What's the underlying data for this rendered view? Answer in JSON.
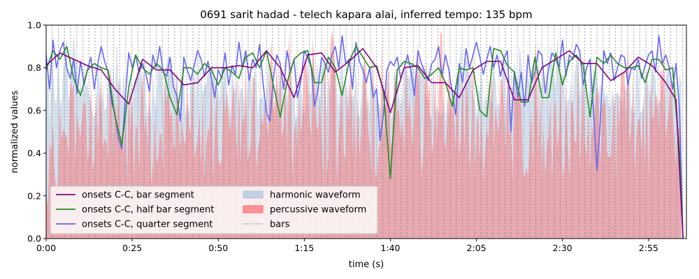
{
  "chart_data": {
    "type": "line",
    "title": "0691 sarit hadad - telech kapara alai, inferred tempo: 135 bpm",
    "xlabel": "time (s)",
    "ylabel": "normalized values",
    "xlim": [
      0,
      186
    ],
    "ylim": [
      0,
      1
    ],
    "x_ticks": [
      {
        "value": 0,
        "label": "0:00"
      },
      {
        "value": 25,
        "label": "0:25"
      },
      {
        "value": 50,
        "label": "0:50"
      },
      {
        "value": 75,
        "label": "1:15"
      },
      {
        "value": 100,
        "label": "1:40"
      },
      {
        "value": 125,
        "label": "2:05"
      },
      {
        "value": 150,
        "label": "2:30"
      },
      {
        "value": 175,
        "label": "2:55"
      }
    ],
    "y_ticks": [
      {
        "value": 0,
        "label": "0.0"
      },
      {
        "value": 0.2,
        "label": "0.2"
      },
      {
        "value": 0.4,
        "label": "0.4"
      },
      {
        "value": 0.6,
        "label": "0.6"
      },
      {
        "value": 0.8,
        "label": "0.8"
      },
      {
        "value": 1.0,
        "label": "1.0"
      }
    ],
    "legend_position": "lower-left",
    "bar_interval": 1.778,
    "series": [
      {
        "name": "onsets C-C, bar segment",
        "color": "#800080",
        "x": [
          0,
          4,
          8,
          12,
          16,
          20,
          24,
          28,
          32,
          36,
          40,
          44,
          48,
          52,
          56,
          60,
          64,
          68,
          72,
          76,
          80,
          84,
          88,
          92,
          96,
          100,
          104,
          108,
          112,
          116,
          120,
          124,
          128,
          132,
          136,
          140,
          144,
          148,
          152,
          156,
          160,
          164,
          168,
          172,
          176,
          180,
          183,
          185
        ],
        "values": [
          0.81,
          0.87,
          0.84,
          0.81,
          0.79,
          0.7,
          0.63,
          0.84,
          0.79,
          0.79,
          0.72,
          0.73,
          0.8,
          0.8,
          0.81,
          0.8,
          0.88,
          0.8,
          0.66,
          0.86,
          0.87,
          0.78,
          0.83,
          0.89,
          0.8,
          0.59,
          0.8,
          0.81,
          0.73,
          0.73,
          0.66,
          0.79,
          0.83,
          0.83,
          0.65,
          0.65,
          0.8,
          0.84,
          0.88,
          0.82,
          0.82,
          0.74,
          0.78,
          0.85,
          0.81,
          0.73,
          0.65,
          0.0
        ]
      },
      {
        "name": "onsets C-C, half bar segment",
        "color": "#228b22",
        "x": [
          0,
          2,
          4,
          6,
          8,
          10,
          12,
          14,
          16,
          18,
          20,
          22,
          24,
          26,
          28,
          30,
          32,
          34,
          36,
          38,
          40,
          42,
          44,
          46,
          48,
          50,
          52,
          54,
          56,
          58,
          60,
          62,
          64,
          66,
          68,
          70,
          72,
          74,
          76,
          78,
          80,
          82,
          84,
          86,
          88,
          90,
          92,
          94,
          96,
          98,
          100,
          102,
          104,
          106,
          108,
          110,
          112,
          114,
          116,
          118,
          120,
          122,
          124,
          126,
          128,
          130,
          132,
          134,
          136,
          138,
          140,
          142,
          144,
          146,
          148,
          150,
          152,
          154,
          156,
          158,
          160,
          162,
          164,
          166,
          168,
          170,
          172,
          174,
          176,
          178,
          180,
          182,
          184,
          185
        ],
        "values": [
          0.79,
          0.88,
          0.84,
          0.9,
          0.75,
          0.67,
          0.79,
          0.82,
          0.8,
          0.79,
          0.57,
          0.44,
          0.71,
          0.86,
          0.8,
          0.77,
          0.82,
          0.79,
          0.66,
          0.58,
          0.8,
          0.8,
          0.77,
          0.82,
          0.79,
          0.72,
          0.8,
          0.78,
          0.75,
          0.85,
          0.87,
          0.8,
          0.88,
          0.72,
          0.57,
          0.73,
          0.84,
          0.87,
          0.88,
          0.73,
          0.73,
          0.85,
          0.8,
          0.67,
          0.83,
          0.9,
          0.85,
          0.8,
          0.81,
          0.69,
          0.28,
          0.79,
          0.83,
          0.82,
          0.8,
          0.75,
          0.77,
          0.8,
          0.73,
          0.62,
          0.8,
          0.79,
          0.8,
          0.6,
          0.57,
          0.89,
          0.88,
          0.81,
          0.78,
          0.64,
          0.64,
          0.85,
          0.66,
          0.66,
          0.87,
          0.72,
          0.83,
          0.86,
          0.81,
          0.57,
          0.85,
          0.82,
          0.86,
          0.82,
          0.8,
          0.8,
          0.81,
          0.73,
          0.84,
          0.84,
          0.79,
          0.8,
          0.4,
          0.0
        ]
      },
      {
        "name": "onsets C-C, quarter segment",
        "color": "#6666ee",
        "x": [
          0,
          1,
          2,
          3,
          4,
          5,
          6,
          7,
          8,
          9,
          10,
          11,
          12,
          13,
          14,
          15,
          16,
          17,
          18,
          19,
          20,
          21,
          22,
          23,
          24,
          25,
          26,
          27,
          28,
          29,
          30,
          31,
          32,
          33,
          34,
          35,
          36,
          37,
          38,
          39,
          40,
          41,
          42,
          43,
          44,
          45,
          46,
          47,
          48,
          49,
          50,
          51,
          52,
          53,
          54,
          55,
          56,
          57,
          58,
          59,
          60,
          61,
          62,
          63,
          64,
          65,
          66,
          67,
          68,
          69,
          70,
          71,
          72,
          73,
          74,
          75,
          76,
          77,
          78,
          79,
          80,
          81,
          82,
          83,
          84,
          85,
          86,
          87,
          88,
          89,
          90,
          91,
          92,
          93,
          94,
          95,
          96,
          97,
          98,
          99,
          100,
          101,
          102,
          103,
          104,
          105,
          106,
          107,
          108,
          109,
          110,
          111,
          112,
          113,
          114,
          115,
          116,
          117,
          118,
          119,
          120,
          121,
          122,
          123,
          124,
          125,
          126,
          127,
          128,
          129,
          130,
          131,
          132,
          133,
          134,
          135,
          136,
          137,
          138,
          139,
          140,
          141,
          142,
          143,
          144,
          145,
          146,
          147,
          148,
          149,
          150,
          151,
          152,
          153,
          154,
          155,
          156,
          157,
          158,
          159,
          160,
          161,
          162,
          163,
          164,
          165,
          166,
          167,
          168,
          169,
          170,
          171,
          172,
          173,
          174,
          175,
          176,
          177,
          178,
          179,
          180,
          181,
          182,
          183,
          184,
          185
        ],
        "values": [
          0.86,
          0.7,
          0.93,
          0.8,
          0.88,
          0.92,
          0.8,
          0.75,
          0.84,
          0.68,
          0.83,
          0.72,
          0.79,
          0.85,
          0.7,
          0.82,
          0.9,
          0.83,
          0.78,
          0.64,
          0.58,
          0.47,
          0.42,
          0.66,
          0.87,
          0.8,
          0.86,
          0.78,
          0.82,
          0.77,
          0.69,
          0.86,
          0.8,
          0.9,
          0.78,
          0.76,
          0.85,
          0.71,
          0.67,
          0.55,
          0.85,
          0.79,
          0.74,
          0.81,
          0.88,
          0.84,
          0.76,
          0.83,
          0.75,
          0.66,
          0.79,
          0.75,
          0.87,
          0.72,
          0.81,
          0.77,
          0.92,
          0.8,
          0.88,
          0.74,
          0.84,
          0.8,
          0.91,
          0.73,
          0.59,
          0.55,
          0.75,
          0.86,
          0.82,
          0.7,
          0.88,
          0.78,
          0.84,
          0.66,
          0.74,
          0.88,
          0.85,
          0.8,
          0.62,
          0.7,
          0.85,
          0.82,
          0.78,
          0.86,
          0.9,
          0.8,
          0.95,
          0.82,
          0.84,
          0.7,
          0.92,
          0.83,
          0.79,
          0.73,
          0.8,
          0.66,
          0.7,
          0.46,
          0.58,
          0.79,
          0.83,
          0.81,
          0.85,
          0.75,
          0.8,
          0.86,
          0.78,
          0.67,
          0.88,
          0.82,
          0.78,
          0.74,
          0.82,
          0.84,
          0.9,
          0.76,
          0.86,
          0.79,
          0.68,
          0.58,
          0.82,
          0.73,
          0.89,
          0.8,
          0.86,
          0.92,
          0.85,
          0.77,
          0.84,
          0.9,
          0.8,
          0.86,
          0.76,
          0.84,
          0.88,
          0.5,
          0.78,
          0.66,
          0.78,
          0.62,
          0.86,
          0.73,
          0.78,
          0.88,
          0.86,
          0.68,
          0.8,
          0.87,
          0.84,
          0.8,
          0.93,
          0.76,
          0.86,
          0.84,
          0.91,
          0.88,
          0.72,
          0.8,
          0.84,
          0.6,
          0.32,
          0.55,
          0.88,
          0.82,
          0.87,
          0.74,
          0.8,
          0.86,
          0.85,
          0.72,
          0.8,
          0.79,
          0.84,
          0.75,
          0.81,
          0.86,
          0.88,
          0.78,
          0.95,
          0.82,
          0.86,
          0.8,
          0.7,
          0.82,
          0.6,
          0.0
        ]
      }
    ],
    "areas": [
      {
        "name": "harmonic waveform",
        "color": "#b0c4de",
        "opacity": 0.55
      },
      {
        "name": "percussive waveform",
        "color": "#ff6666",
        "opacity": 0.45
      }
    ],
    "lines": [
      {
        "name": "bars",
        "color": "#808080",
        "style": "dotted"
      }
    ]
  }
}
